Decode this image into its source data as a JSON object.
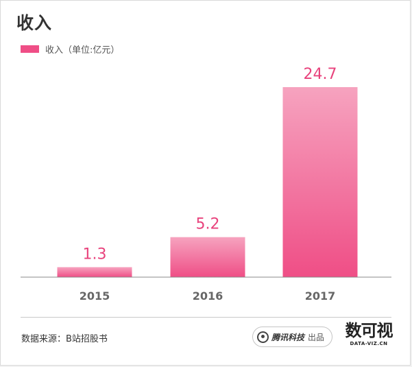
{
  "title": "收入",
  "legend_label": "收入（单位:亿元）",
  "source": "数据来源：B站招股书",
  "brand": {
    "name": "腾讯科技",
    "suffix": "出品",
    "logo_icon": "tencent-tech-logo-icon"
  },
  "dataviz": {
    "mark": "数可视",
    "sub": "DATA-VIZ.CN"
  },
  "chart_data": {
    "type": "bar",
    "title": "收入",
    "categories": [
      "2015",
      "2016",
      "2017"
    ],
    "series": [
      {
        "name": "收入（单位:亿元）",
        "values": [
          1.3,
          5.2,
          24.7
        ],
        "color_top": "#f6a3bf",
        "color_bottom": "#ef4e86"
      }
    ],
    "value_labels": [
      "1.3",
      "5.2",
      "24.7"
    ],
    "ylim": [
      0,
      24.7
    ],
    "label_color": "#e8427c",
    "xlabel": "",
    "ylabel": "",
    "grid": false,
    "legend": "top-left"
  }
}
